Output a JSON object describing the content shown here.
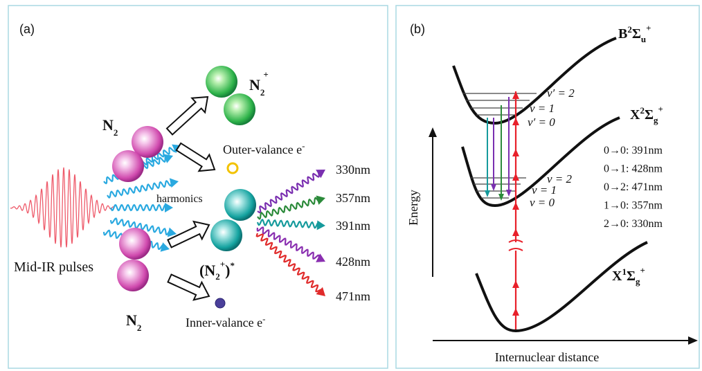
{
  "panel_a": {
    "label": "(a)",
    "pulse_label": "Mid-IR pulses",
    "harmonics": "harmonics",
    "neutral_top": {
      "symbol": "N",
      "subscript": "2"
    },
    "neutral_bottom": {
      "symbol": "N",
      "subscript": "2"
    },
    "ion": {
      "symbol": "N",
      "subscript": "2",
      "superscript": "+"
    },
    "excited_ion": {
      "open": "(N",
      "subscript": "2",
      "superscript": "+",
      "close": ")",
      "star": "*"
    },
    "outer_electron": {
      "text": "Outer-valance e",
      "superscript": "-"
    },
    "inner_electron": {
      "text": "Inner-valance e",
      "superscript": "-"
    },
    "emission_wavelengths": [
      "330nm",
      "357nm",
      "391nm",
      "428nm",
      "471nm"
    ]
  },
  "panel_b": {
    "label": "(b)",
    "y_axis": "Energy",
    "x_axis": "Internuclear distance",
    "states": [
      {
        "symbol": "B",
        "left_superscript": "2",
        "term": "Σ",
        "subscript": "u",
        "superscript": "+"
      },
      {
        "symbol": "X",
        "left_superscript": "2",
        "term": "Σ",
        "subscript": "g",
        "superscript": "+"
      },
      {
        "symbol": "X",
        "left_superscript": "1",
        "term": "Σ",
        "subscript": "g",
        "superscript": "+"
      }
    ],
    "upper_levels": [
      "v′ = 2",
      "v = 1",
      "v′ = 0"
    ],
    "lower_levels": [
      "v = 2",
      "v = 1",
      "v = 0"
    ],
    "transitions": [
      "0→0: 391nm",
      "0→1: 428nm",
      "0→2: 471nm",
      "1→0: 357nm",
      "2→0: 330nm"
    ]
  }
}
